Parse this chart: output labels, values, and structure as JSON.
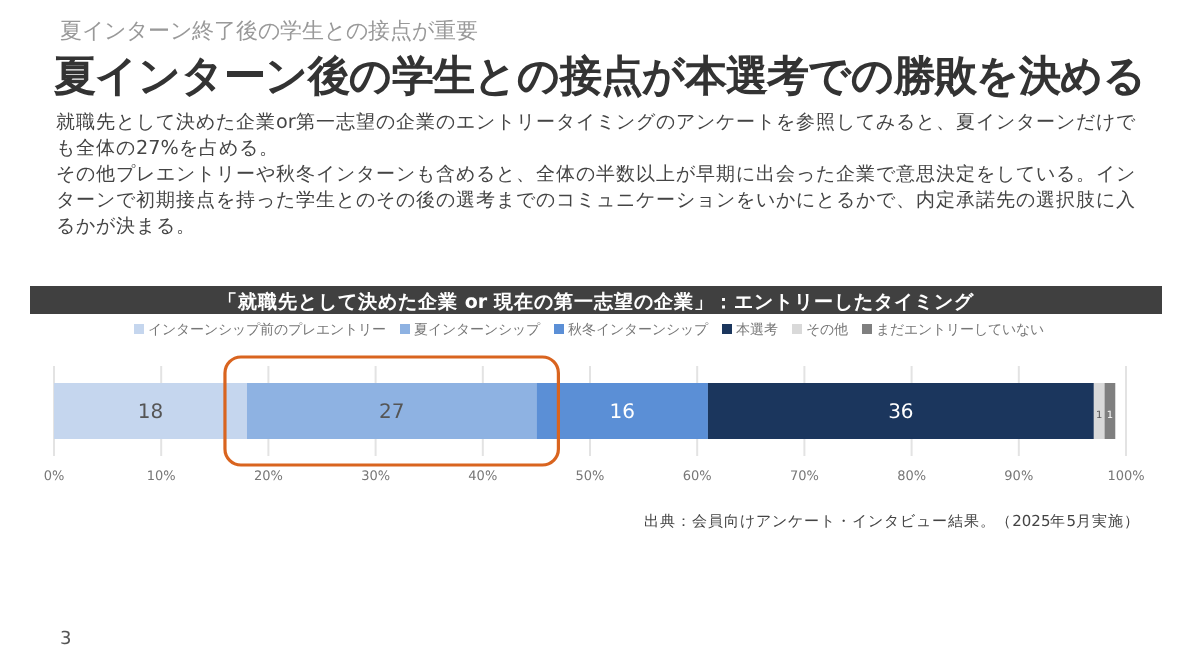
{
  "chart_data": {
    "type": "bar",
    "orientation": "horizontal",
    "stacked": true,
    "title": "夏インターン後の学生との接点が本選考での勝敗を決める",
    "subtitle": "就職先として決めた企業or第一志望の企業のエントリータイミングのアンケートを参照してみると、夏インターンだけでも全体の27%を占める。",
    "annotations": [
      "夏インターン終了後の学生との接点が重要",
      "「就職先として決めた企業 or 現在の第一志望の企業」：エントリーしたタイミング",
      "出典：会員向けアンケート・インタビュー結果。（2025年5月実施）",
      "3",
      "その他プレエントリーや秋冬インターンも含めると、全体の半数以上が早期に出会った企業で意思決定をしている。インターンで初期接点を持った学生とのその後の選考までのコミュニケーションをいかにとるかで、内定承諾先の選択肢に入るかが決まる。"
    ],
    "categories": [
      null
    ],
    "series": [
      {
        "name": "インターンシップ前のプレエントリー",
        "color": "#c5d6ee",
        "values": [
          18
        ]
      },
      {
        "name": "夏インターンシップ",
        "color": "#8eb2e2",
        "values": [
          27
        ]
      },
      {
        "name": "秋冬インターンシップ",
        "color": "#5b8fd6",
        "values": [
          16
        ]
      },
      {
        "name": "本選考",
        "color": "#1b365d",
        "values": [
          36
        ]
      },
      {
        "name": "その他",
        "color": "#d9d9d9",
        "values": [
          1
        ]
      },
      {
        "name": "まだエントリーしていない",
        "color": "#7f7f7f",
        "values": [
          1
        ]
      }
    ],
    "xlim": [
      0,
      100
    ],
    "xticks": [
      {
        "value": 0,
        "label": "0%"
      },
      {
        "value": 10,
        "label": "10%"
      },
      {
        "value": 20,
        "label": "20%"
      },
      {
        "value": 30,
        "label": "30%"
      },
      {
        "value": 40,
        "label": "40%"
      },
      {
        "value": 50,
        "label": "50%"
      },
      {
        "value": 60,
        "label": "60%"
      },
      {
        "value": 70,
        "label": "70%"
      },
      {
        "value": 80,
        "label": "80%"
      },
      {
        "value": 90,
        "label": "90%"
      },
      {
        "value": 100,
        "label": "100%"
      }
    ],
    "grid": "x",
    "legend": "top",
    "data_labels": true
  }
}
